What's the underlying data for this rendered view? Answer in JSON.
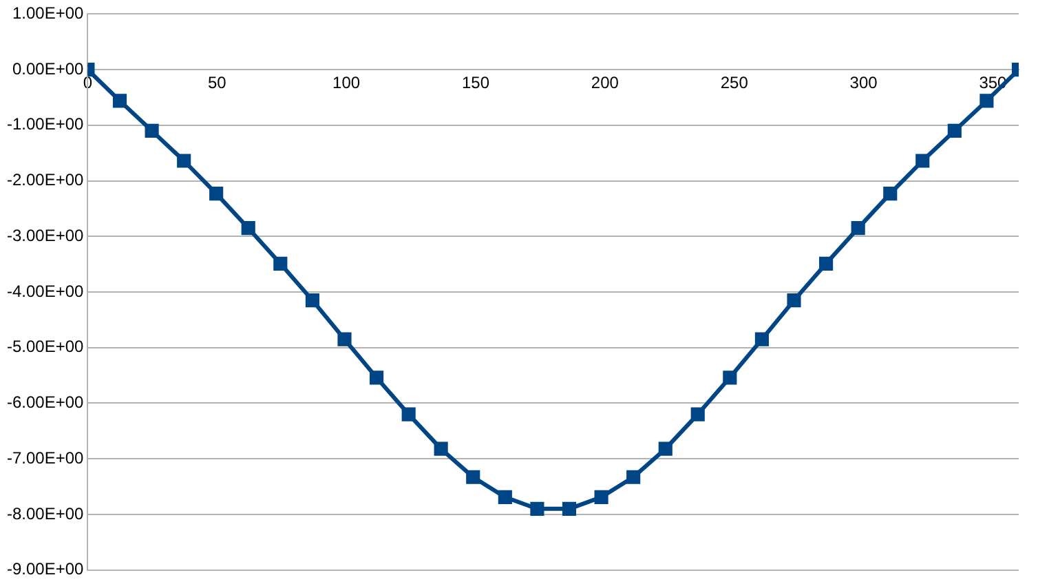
{
  "chart_data": {
    "type": "line",
    "x": [
      0,
      12.4,
      24.8,
      37.2,
      49.7,
      62.1,
      74.5,
      86.9,
      99.3,
      111.7,
      124.1,
      136.6,
      149.0,
      161.4,
      173.8,
      186.2,
      198.6,
      211.0,
      223.4,
      235.9,
      248.3,
      260.7,
      273.1,
      285.5,
      297.9,
      310.3,
      322.8,
      335.2,
      347.6,
      360
    ],
    "series": [
      {
        "color": "#004586",
        "values": [
          0,
          -0.56,
          -1.1,
          -1.64,
          -2.23,
          -2.85,
          -3.49,
          -4.15,
          -4.85,
          -5.54,
          -6.2,
          -6.82,
          -7.33,
          -7.69,
          -7.9,
          -7.9,
          -7.69,
          -7.33,
          -6.82,
          -6.2,
          -5.54,
          -4.85,
          -4.15,
          -3.49,
          -2.85,
          -2.23,
          -1.64,
          -1.1,
          -0.56,
          0
        ]
      }
    ],
    "xlim": [
      0,
      360
    ],
    "xticks": [
      0,
      50,
      100,
      150,
      200,
      250,
      300,
      350
    ],
    "ylim": [
      -9,
      1
    ],
    "yticks": [
      {
        "value": -9,
        "label": "-9.00E+00"
      },
      {
        "value": -8,
        "label": "-8.00E+00"
      },
      {
        "value": -7,
        "label": "-7.00E+00"
      },
      {
        "value": -6,
        "label": "-6.00E+00"
      },
      {
        "value": -5,
        "label": "-5.00E+00"
      },
      {
        "value": -4,
        "label": "-4.00E+00"
      },
      {
        "value": -3,
        "label": "-3.00E+00"
      },
      {
        "value": -2,
        "label": "-2.00E+00"
      },
      {
        "value": -1,
        "label": "-1.00E+00"
      },
      {
        "value": 0,
        "label": "0.00E+00"
      },
      {
        "value": 1,
        "label": "1.00E+00"
      }
    ],
    "grid": "y",
    "marker": "square",
    "line_style": "solid",
    "legend": false
  }
}
